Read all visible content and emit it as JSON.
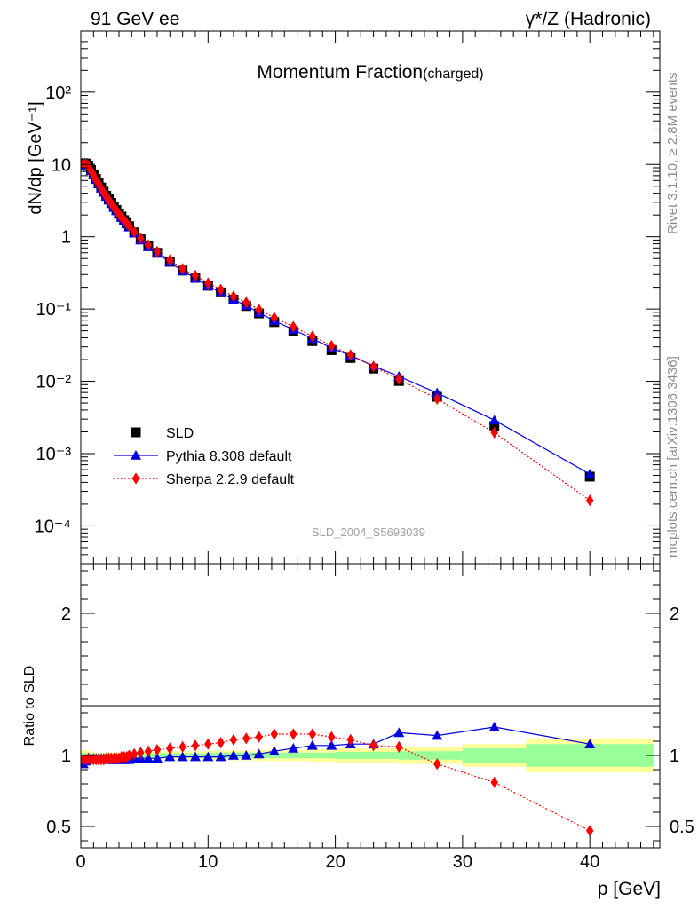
{
  "header": {
    "left": "91 GeV ee",
    "right": "γ*/Z (Hadronic)"
  },
  "side": {
    "rivet": "Rivet 3.1.10, ≥ 2.8M events",
    "source": "mcplots.cern.ch [arXiv:1306.3436]"
  },
  "plot_title": {
    "main": "Momentum Fraction",
    "sub": "(charged)"
  },
  "watermark": "SLD_2004_S5693039",
  "chart_data": [
    {
      "type": "scatter",
      "panel": "main",
      "ylabel": "dN/dp [GeV⁻¹]",
      "xlabel": "p [GeV]",
      "xlim": [
        0,
        45.5
      ],
      "ylim": [
        3e-05,
        700
      ],
      "yscale": "log",
      "y_ticks": [
        "10⁻⁴",
        "10⁻³",
        "10⁻²",
        "10⁻¹",
        "1",
        "10",
        "10²"
      ],
      "x_ticks": [
        "0",
        "10",
        "20",
        "30",
        "40"
      ],
      "legend": [
        "SLD",
        "Pythia 8.308 default",
        "Sherpa 2.2.9 default"
      ],
      "legend_position": "bottom-left",
      "series": [
        {
          "name": "SLD",
          "color": "#000000",
          "marker": "square",
          "x": [
            0.2,
            0.4,
            0.6,
            0.8,
            1.0,
            1.2,
            1.4,
            1.6,
            1.8,
            2.0,
            2.2,
            2.4,
            2.6,
            2.8,
            3.0,
            3.2,
            3.4,
            3.6,
            3.8,
            4.2,
            4.7,
            5.3,
            6.0,
            7.0,
            8.0,
            9.0,
            10.0,
            11.0,
            12.0,
            13.0,
            14.0,
            15.2,
            16.7,
            18.2,
            19.7,
            21.2,
            23.0,
            25.0,
            28.0,
            32.5,
            40.0
          ],
          "values": [
            10.4,
            10.3,
            9.6,
            8.4,
            7.3,
            6.3,
            5.5,
            4.8,
            4.2,
            3.7,
            3.3,
            2.95,
            2.6,
            2.35,
            2.1,
            1.9,
            1.7,
            1.55,
            1.4,
            1.15,
            0.92,
            0.74,
            0.6,
            0.45,
            0.34,
            0.27,
            0.21,
            0.17,
            0.135,
            0.11,
            0.087,
            0.066,
            0.049,
            0.036,
            0.027,
            0.021,
            0.015,
            0.0101,
            0.0061,
            0.0024,
            0.00048
          ]
        },
        {
          "name": "Pythia 8.308 default",
          "color": "#0000e0",
          "marker": "triangle",
          "x": [
            0.2,
            0.4,
            0.6,
            0.8,
            1.0,
            1.2,
            1.4,
            1.6,
            1.8,
            2.0,
            2.2,
            2.4,
            2.6,
            2.8,
            3.0,
            3.2,
            3.4,
            3.6,
            3.8,
            4.2,
            4.7,
            5.3,
            6.0,
            7.0,
            8.0,
            9.0,
            10.0,
            11.0,
            12.0,
            13.0,
            14.0,
            15.2,
            16.7,
            18.2,
            19.7,
            21.2,
            23.0,
            25.0,
            28.0,
            32.5,
            40.0
          ],
          "values": [
            9.8,
            10.0,
            9.5,
            8.3,
            7.2,
            6.2,
            5.4,
            4.7,
            4.1,
            3.6,
            3.2,
            2.87,
            2.53,
            2.28,
            2.04,
            1.84,
            1.65,
            1.5,
            1.36,
            1.12,
            0.9,
            0.73,
            0.59,
            0.445,
            0.336,
            0.267,
            0.209,
            0.169,
            0.135,
            0.111,
            0.089,
            0.069,
            0.052,
            0.039,
            0.029,
            0.0228,
            0.0163,
            0.0117,
            0.0069,
            0.0029,
            0.00052
          ]
        },
        {
          "name": "Sherpa 2.2.9 default",
          "color": "#ff0000",
          "marker": "diamond",
          "x": [
            0.2,
            0.4,
            0.6,
            0.8,
            1.0,
            1.2,
            1.4,
            1.6,
            1.8,
            2.0,
            2.2,
            2.4,
            2.6,
            2.8,
            3.0,
            3.2,
            3.4,
            3.6,
            3.8,
            4.2,
            4.7,
            5.3,
            6.0,
            7.0,
            8.0,
            9.0,
            10.0,
            11.0,
            12.0,
            13.0,
            14.0,
            15.2,
            16.7,
            18.2,
            19.7,
            21.2,
            23.0,
            25.0,
            28.0,
            32.5,
            40.0
          ],
          "values": [
            10.2,
            10.1,
            9.4,
            8.2,
            7.1,
            6.1,
            5.35,
            4.68,
            4.1,
            3.62,
            3.22,
            2.88,
            2.55,
            2.3,
            2.06,
            1.87,
            1.68,
            1.54,
            1.4,
            1.17,
            0.95,
            0.77,
            0.625,
            0.475,
            0.36,
            0.29,
            0.228,
            0.186,
            0.15,
            0.123,
            0.098,
            0.076,
            0.057,
            0.042,
            0.031,
            0.0232,
            0.016,
            0.0107,
            0.0057,
            0.00195,
            0.000225
          ]
        }
      ]
    },
    {
      "type": "line",
      "panel": "ratio",
      "ylabel": "Ratio to SLD",
      "xlabel": "p [GeV]",
      "xlim": [
        0,
        45.5
      ],
      "ylim": [
        0.35,
        2.35
      ],
      "y_ticks": [
        "0.5",
        "1",
        "2"
      ],
      "x_ticks": [
        "0",
        "10",
        "20",
        "30",
        "40"
      ],
      "bands": {
        "edges": [
          0,
          0.5,
          1,
          2,
          3,
          4,
          5,
          6,
          8,
          10,
          12,
          14,
          16,
          18,
          20,
          25,
          30,
          35,
          45
        ],
        "inner": [
          0.02,
          0.015,
          0.01,
          0.01,
          0.01,
          0.012,
          0.015,
          0.015,
          0.015,
          0.02,
          0.02,
          0.02,
          0.02,
          0.02,
          0.025,
          0.03,
          0.05,
          0.08,
          0.21
        ],
        "outer": [
          0.04,
          0.03,
          0.02,
          0.02,
          0.02,
          0.024,
          0.028,
          0.03,
          0.03,
          0.035,
          0.035,
          0.04,
          0.04,
          0.045,
          0.05,
          0.06,
          0.08,
          0.12,
          0.37
        ],
        "inner_color": "#99ff99",
        "outer_color": "#ffff99"
      },
      "series": [
        {
          "name": "Pythia 8.308 default",
          "color": "#0000e0",
          "marker": "triangle",
          "x": [
            0.2,
            0.4,
            0.6,
            0.8,
            1.0,
            1.2,
            1.4,
            1.6,
            1.8,
            2.0,
            2.2,
            2.4,
            2.6,
            2.8,
            3.0,
            3.2,
            3.4,
            3.6,
            3.8,
            4.2,
            4.7,
            5.3,
            6.0,
            7.0,
            8.0,
            9.0,
            10.0,
            11.0,
            12.0,
            13.0,
            14.0,
            15.2,
            16.7,
            18.2,
            19.7,
            21.2,
            23.0,
            25.0,
            28.0,
            32.5,
            40.0
          ],
          "values": [
            0.94,
            0.96,
            0.98,
            0.98,
            0.98,
            0.98,
            0.98,
            0.98,
            0.98,
            0.98,
            0.97,
            0.97,
            0.97,
            0.97,
            0.97,
            0.97,
            0.97,
            0.97,
            0.97,
            0.98,
            0.98,
            0.98,
            0.98,
            0.99,
            0.99,
            0.99,
            0.99,
            0.99,
            1.0,
            1.0,
            1.01,
            1.03,
            1.05,
            1.07,
            1.07,
            1.08,
            1.08,
            1.16,
            1.14,
            1.2,
            1.08
          ]
        },
        {
          "name": "Sherpa 2.2.9 default",
          "color": "#ff0000",
          "marker": "diamond",
          "x": [
            0.2,
            0.4,
            0.6,
            0.8,
            1.0,
            1.2,
            1.4,
            1.6,
            1.8,
            2.0,
            2.2,
            2.4,
            2.6,
            2.8,
            3.0,
            3.2,
            3.4,
            3.6,
            3.8,
            4.2,
            4.7,
            5.3,
            6.0,
            7.0,
            8.0,
            9.0,
            10.0,
            11.0,
            12.0,
            13.0,
            14.0,
            15.2,
            16.7,
            18.2,
            19.7,
            21.2,
            23.0,
            25.0,
            28.0,
            32.5,
            40.0
          ],
          "values": [
            0.97,
            0.97,
            0.98,
            0.97,
            0.97,
            0.97,
            0.97,
            0.97,
            0.97,
            0.98,
            0.98,
            0.98,
            0.98,
            0.98,
            0.98,
            0.99,
            0.99,
            0.99,
            1.0,
            1.01,
            1.02,
            1.03,
            1.04,
            1.05,
            1.06,
            1.07,
            1.08,
            1.09,
            1.11,
            1.12,
            1.13,
            1.15,
            1.15,
            1.15,
            1.13,
            1.11,
            1.07,
            1.06,
            0.94,
            0.81,
            0.47
          ]
        }
      ]
    }
  ]
}
